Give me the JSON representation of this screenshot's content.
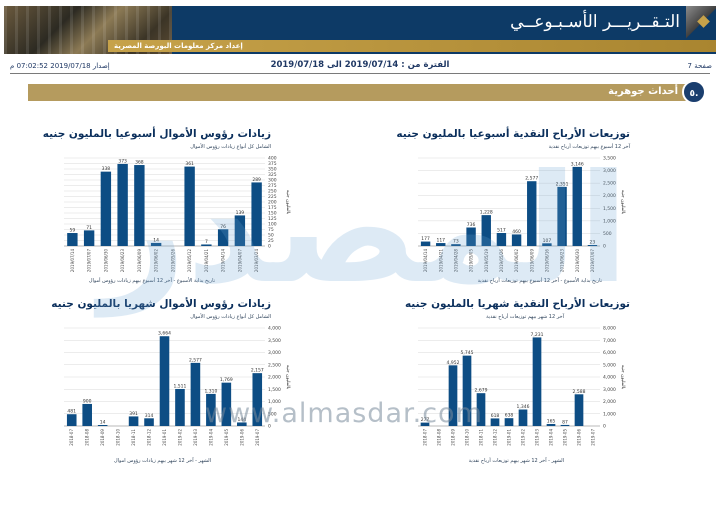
{
  "header": {
    "title": "التـقــريـــر الأسـبـوعــي",
    "subtitle": "إعداد مركز معلومات البورصة المصرية"
  },
  "info": {
    "page": "صفحة 7",
    "period": "الفترة من : 2019/07/14 الى 2019/07/18",
    "issue": "إصدار 2019/07/18 07:02:52 م"
  },
  "section": {
    "number": "٥.",
    "title": "أحداث جوهرية"
  },
  "watermark": {
    "arabic": "المصدر",
    "url": "www.almasdar.com"
  },
  "colors": {
    "bar": "#0d4d84",
    "section_bar": "#b59b5e",
    "banner": "#0d3a66"
  },
  "chart_data": [
    {
      "id": "weekly_dividends",
      "type": "bar",
      "title": "توزيعات الأرباح النقدية أسبوعيا بالمليون جنيه",
      "subtitle": "آخر 12 أسبوع بيهم توزيعات أرباح نقدية",
      "xlabel": "تاريخ بداية الأسبوع - آخر 12 أسبوع بيهم توزيعات أرباح نقدية",
      "ylabel": "بالمليون جنيه",
      "ylim": [
        0,
        3500
      ],
      "yticks": [
        "0",
        "500",
        "1,000",
        "1,500",
        "2,000",
        "2,500",
        "3,000",
        "3,500"
      ],
      "categories": [
        "2019/04/14",
        "2019/04/21",
        "2019/04/28",
        "2019/05/05",
        "2019/05/19",
        "2019/05/26",
        "2019/06/02",
        "2019/06/09",
        "2019/06/16",
        "2019/06/23",
        "2019/06/30",
        "2019/07/07"
      ],
      "values": [
        177,
        117,
        73,
        736,
        1228,
        517,
        460,
        2577,
        107,
        2351,
        3146,
        23
      ],
      "labels": [
        "177",
        "117",
        "73",
        "736",
        "1,228",
        "517",
        "460",
        "2,577",
        "107",
        "2,351",
        "3,146",
        "23"
      ]
    },
    {
      "id": "weekly_capital",
      "type": "bar",
      "title": "زيادات رؤوس الأموال أسبوعيا بالمليون جنيه",
      "subtitle": "الشامل كل أنواع زيادات رؤوس الأموال",
      "xlabel": "تاريخ بداية الأسبوع - آخر 12 أسبوع بيهم زيادات رؤوس أموال",
      "ylabel": "بالمليون جنيه",
      "ylim": [
        0,
        400
      ],
      "yticks": [
        "0",
        "25",
        "50",
        "75",
        "100",
        "125",
        "150",
        "175",
        "200",
        "225",
        "250",
        "275",
        "300",
        "325",
        "350",
        "375",
        "400"
      ],
      "categories": [
        "2019/07/14",
        "2019/07/07",
        "2019/06/30",
        "2019/06/23",
        "2019/06/09",
        "2019/06/02",
        "2019/05/26",
        "2019/05/12",
        "2019/04/21",
        "2019/04/14",
        "2019/04/07",
        "2019/03/24"
      ],
      "values": [
        59,
        71,
        338,
        373,
        368,
        14,
        0,
        361,
        7,
        76,
        139,
        289
      ],
      "labels": [
        "59",
        "71",
        "338",
        "373",
        "368",
        "14",
        "",
        "361",
        "7",
        "76",
        "139",
        "289"
      ]
    },
    {
      "id": "monthly_dividends",
      "type": "bar",
      "title": "توزيعات الأرباح النقدية شهريا بالمليون جنيه",
      "subtitle": "آخر 12 شهر بيهم توزيعات أرباح نقدية",
      "xlabel": "الشهر - آخر 12 شهر بيهم توزيعات أرباح نقدية",
      "ylabel": "بالمليون جنيه",
      "ylim": [
        0,
        8000
      ],
      "yticks": [
        "0",
        "1,000",
        "2,000",
        "3,000",
        "4,000",
        "5,000",
        "6,000",
        "7,000",
        "8,000"
      ],
      "categories": [
        "2018-07",
        "2018-08",
        "2018-09",
        "2018-10",
        "2018-11",
        "2018-12",
        "2019-01",
        "2019-02",
        "2019-03",
        "2019-04",
        "2019-05",
        "2019-06",
        "2019-07"
      ],
      "values": [
        277,
        0,
        4952,
        5745,
        2679,
        618,
        638,
        1346,
        7231,
        165,
        87,
        2588,
        0
      ],
      "labels": [
        "277",
        "",
        "4,952",
        "5,745",
        "2,679",
        "618",
        "638",
        "1,346",
        "7,231",
        "165",
        "87",
        "2,588",
        ""
      ]
    },
    {
      "id": "monthly_capital",
      "type": "bar",
      "title": "زيادات رؤوس الأموال شهريا بالمليون جنيه",
      "subtitle": "الشامل كل أنواع زيادات رؤوس الأموال",
      "xlabel": "الشهر - آخر 12 شهر بيهم زيادات رؤوس اموال",
      "ylabel": "بالمليون جنيه",
      "ylim": [
        0,
        4000
      ],
      "yticks": [
        "0",
        "500",
        "1,000",
        "1,500",
        "2,000",
        "2,500",
        "3,000",
        "3,500",
        "4,000"
      ],
      "categories": [
        "2018-07",
        "2018-08",
        "2018-09",
        "2018-10",
        "2018-11",
        "2018-12",
        "2019-01",
        "2019-02",
        "2019-03",
        "2019-04",
        "2019-05",
        "2019-06",
        "2019-07"
      ],
      "values": [
        481,
        900,
        14,
        0,
        391,
        314,
        3664,
        1511,
        2577,
        1310,
        1769,
        144,
        2157
      ],
      "labels": [
        "481",
        "900",
        "14",
        "",
        "391",
        "314",
        "3,664",
        "1,511",
        "2,577",
        "1,310",
        "1,769",
        "144",
        "2,157"
      ]
    }
  ]
}
